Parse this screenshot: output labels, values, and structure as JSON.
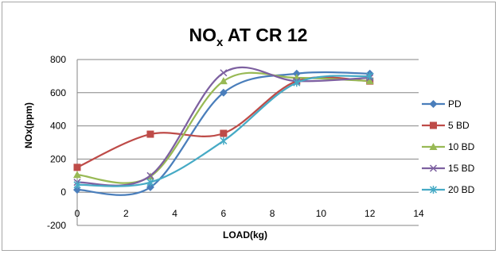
{
  "chart_data": {
    "type": "line",
    "title": "NOx AT CR 12",
    "title_parts": {
      "main": "NO",
      "sub": "x",
      "rest": " AT CR 12"
    },
    "xlabel": "LOAD(kg)",
    "ylabel": "NOx(ppm)",
    "xlim": [
      0,
      14
    ],
    "ylim": [
      -200,
      800
    ],
    "x_ticks": [
      0,
      2,
      4,
      6,
      8,
      10,
      12,
      14
    ],
    "y_ticks": [
      -200,
      0,
      200,
      400,
      600,
      800
    ],
    "grid": "horizontal major",
    "legend_position": "right",
    "smooth": true,
    "x": [
      0,
      3,
      6,
      9,
      12
    ],
    "series": [
      {
        "name": "PD",
        "color": "#4a7ebb",
        "marker": "diamond",
        "values": [
          15,
          30,
          600,
          715,
          715
        ]
      },
      {
        "name": "5 BD",
        "color": "#be4b48",
        "marker": "square",
        "values": [
          150,
          350,
          355,
          670,
          670
        ]
      },
      {
        "name": "10 BD",
        "color": "#98b954",
        "marker": "triangle",
        "values": [
          105,
          95,
          670,
          690,
          670
        ]
      },
      {
        "name": "15 BD",
        "color": "#7d60a0",
        "marker": "x",
        "values": [
          60,
          100,
          720,
          670,
          690
        ]
      },
      {
        "name": "20 BD",
        "color": "#46aac5",
        "marker": "star",
        "values": [
          45,
          60,
          310,
          660,
          700
        ]
      }
    ]
  }
}
